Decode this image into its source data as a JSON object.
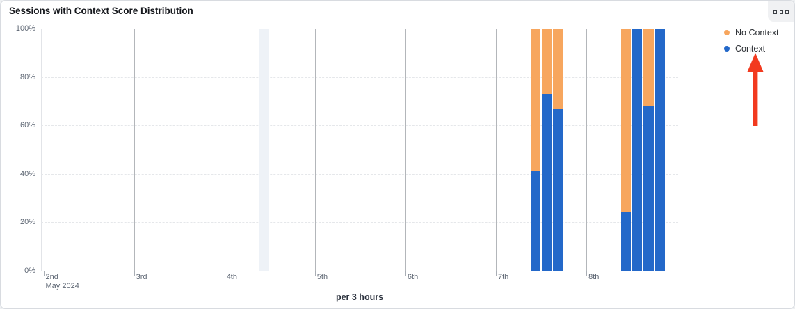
{
  "card": {
    "title": "Sessions with Context Score Distribution",
    "footer_label": "per 3 hours",
    "menu_icon": "ellipsis-squares"
  },
  "legend": {
    "position": "top-right",
    "items": [
      {
        "label": "No Context",
        "color": "#f7a65e"
      },
      {
        "label": "Context",
        "color": "#2368c9"
      }
    ]
  },
  "annotation_arrow": {
    "shape": "arrow-up",
    "color": "#f23a1f",
    "points_to": "Context"
  },
  "chart_data": {
    "type": "bar",
    "stacked": true,
    "orientation": "vertical",
    "value_unit": "percent",
    "title": "Sessions with Context Score Distribution",
    "xlabel": "per 3 hours",
    "ylabel": "",
    "ylim": [
      0,
      100
    ],
    "grid": {
      "horizontal": "dashed",
      "vertical": "solid-per-day"
    },
    "y_tick_labels": [
      "0%",
      "20%",
      "40%",
      "60%",
      "80%",
      "100%"
    ],
    "x_tick_labels": [
      "2nd",
      "3rd",
      "4th",
      "5th",
      "6th",
      "7th",
      "8th"
    ],
    "month_label": "May 2024",
    "slots_per_day": 8,
    "slot_hours": 3,
    "series": [
      {
        "name": "No Context",
        "color": "#f7a65e"
      },
      {
        "name": "Context",
        "color": "#2368c9"
      }
    ],
    "bars": [
      {
        "day": "7th",
        "slot_of_day": 3,
        "context_pct": 41,
        "no_context_pct": 59
      },
      {
        "day": "7th",
        "slot_of_day": 4,
        "context_pct": 73,
        "no_context_pct": 27
      },
      {
        "day": "7th",
        "slot_of_day": 5,
        "context_pct": 67,
        "no_context_pct": 33
      },
      {
        "day": "8th",
        "slot_of_day": 3,
        "context_pct": 24,
        "no_context_pct": 76
      },
      {
        "day": "8th",
        "slot_of_day": 4,
        "context_pct": 100,
        "no_context_pct": 0
      },
      {
        "day": "8th",
        "slot_of_day": 5,
        "context_pct": 68,
        "no_context_pct": 32
      },
      {
        "day": "8th",
        "slot_of_day": 6,
        "context_pct": 100,
        "no_context_pct": 0
      }
    ],
    "highlight_band": {
      "day": "4th",
      "slot_of_day": 3,
      "color": "#eef2f7"
    }
  }
}
